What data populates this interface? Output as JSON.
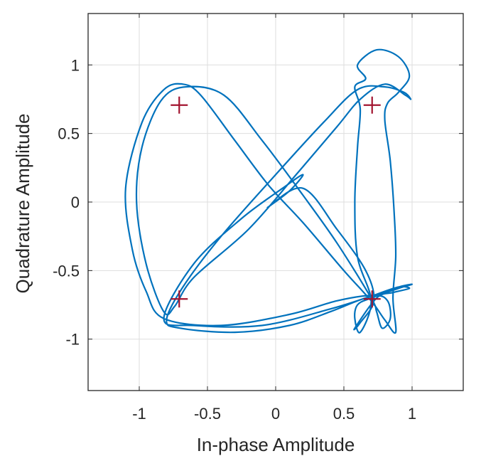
{
  "chart_data": {
    "type": "scatter",
    "title": "",
    "xlabel": "In-phase Amplitude",
    "ylabel": "Quadrature Amplitude",
    "xlim": [
      -1.375,
      1.375
    ],
    "ylim": [
      -1.375,
      1.375
    ],
    "xticks": [
      -1,
      -0.5,
      0,
      0.5,
      1
    ],
    "xtick_labels": [
      "-1",
      "-0.5",
      "0",
      "0.5",
      "1"
    ],
    "yticks": [
      1,
      0.5,
      0,
      -0.5,
      -1
    ],
    "ytick_labels": [
      "1",
      "0.5",
      "0",
      "-0.5",
      "-1"
    ],
    "grid": true,
    "trajectory_color": "#0072BD",
    "marker_color": "#A2142F",
    "series": [
      {
        "kind": "trajectory",
        "points": [
          [
            -0.06,
            -0.04
          ],
          [
            0.1,
            0.08
          ],
          [
            0.2,
            0.2
          ],
          [
            0.05,
            0.1
          ],
          [
            -0.25,
            -0.12
          ],
          [
            -0.6,
            -0.45
          ],
          [
            -0.82,
            -0.85
          ],
          [
            -0.6,
            -0.9
          ],
          [
            -0.1,
            -0.9
          ],
          [
            0.4,
            -0.78
          ],
          [
            0.72,
            -0.68
          ],
          [
            0.9,
            -0.62
          ],
          [
            1.0,
            -0.6
          ],
          [
            0.9,
            -0.63
          ],
          [
            0.7,
            -0.7
          ],
          [
            0.6,
            -0.75
          ],
          [
            0.58,
            -0.85
          ],
          [
            0.62,
            -0.95
          ],
          [
            0.7,
            -0.72
          ],
          [
            0.6,
            -0.4
          ],
          [
            0.58,
            0.0
          ],
          [
            0.6,
            0.4
          ],
          [
            0.62,
            0.68
          ],
          [
            0.58,
            0.84
          ],
          [
            0.66,
            0.9
          ],
          [
            0.6,
            1.0
          ],
          [
            0.74,
            1.11
          ],
          [
            0.9,
            1.06
          ],
          [
            0.98,
            0.92
          ],
          [
            0.9,
            0.8
          ],
          [
            0.82,
            0.72
          ],
          [
            0.8,
            0.6
          ],
          [
            0.84,
            0.3
          ],
          [
            0.87,
            -0.1
          ],
          [
            0.88,
            -0.4
          ],
          [
            0.86,
            -0.7
          ],
          [
            0.88,
            -0.95
          ],
          [
            0.8,
            -0.86
          ],
          [
            0.7,
            -0.72
          ],
          [
            0.5,
            -0.5
          ],
          [
            0.2,
            -0.15
          ],
          [
            -0.05,
            0.12
          ],
          [
            -0.3,
            0.45
          ],
          [
            -0.55,
            0.78
          ],
          [
            -0.68,
            0.86
          ],
          [
            -0.82,
            0.82
          ],
          [
            -0.98,
            0.58
          ],
          [
            -1.1,
            0.1
          ],
          [
            -1.05,
            -0.35
          ],
          [
            -0.95,
            -0.65
          ],
          [
            -0.82,
            -0.85
          ],
          [
            -0.4,
            -0.9
          ],
          [
            0.1,
            -0.82
          ],
          [
            0.45,
            -0.72
          ],
          [
            0.72,
            -0.68
          ],
          [
            0.82,
            -0.72
          ],
          [
            0.84,
            -0.85
          ],
          [
            0.78,
            -0.92
          ],
          [
            0.74,
            -0.8
          ],
          [
            0.7,
            -0.7
          ],
          [
            0.45,
            -0.3
          ],
          [
            0.2,
            0.05
          ],
          [
            -0.1,
            0.45
          ],
          [
            -0.38,
            0.78
          ],
          [
            -0.66,
            0.84
          ],
          [
            -0.84,
            0.74
          ],
          [
            -0.98,
            0.4
          ],
          [
            -1.02,
            0.0
          ],
          [
            -0.95,
            -0.45
          ],
          [
            -0.82,
            -0.8
          ],
          [
            -0.74,
            -0.76
          ],
          [
            -0.6,
            -0.55
          ],
          [
            -0.2,
            -0.2
          ],
          [
            0.15,
            0.2
          ],
          [
            0.45,
            0.55
          ],
          [
            0.62,
            0.75
          ],
          [
            0.8,
            0.86
          ],
          [
            0.95,
            0.78
          ],
          [
            0.99,
            0.75
          ],
          [
            0.94,
            0.8
          ],
          [
            0.8,
            0.84
          ],
          [
            0.6,
            0.82
          ],
          [
            0.35,
            0.58
          ],
          [
            0.0,
            0.2
          ],
          [
            -0.4,
            -0.25
          ],
          [
            -0.68,
            -0.62
          ],
          [
            -0.8,
            -0.86
          ],
          [
            -0.7,
            -0.92
          ],
          [
            -0.3,
            -0.95
          ],
          [
            0.1,
            -0.9
          ],
          [
            0.4,
            -0.8
          ],
          [
            0.6,
            -0.72
          ],
          [
            0.72,
            -0.68
          ],
          [
            0.9,
            -0.62
          ],
          [
            0.98,
            -0.63
          ],
          [
            0.86,
            -0.66
          ],
          [
            0.74,
            -0.7
          ],
          [
            0.58,
            -0.92
          ],
          [
            0.62,
            -0.88
          ],
          [
            0.72,
            -0.72
          ],
          [
            0.66,
            -0.5
          ],
          [
            0.45,
            -0.2
          ],
          [
            0.2,
            0.1
          ],
          [
            -0.06,
            -0.04
          ]
        ]
      },
      {
        "kind": "reference-constellation",
        "points": [
          [
            -0.707,
            0.707
          ],
          [
            0.707,
            0.707
          ],
          [
            -0.707,
            -0.707
          ],
          [
            0.707,
            -0.707
          ]
        ]
      }
    ]
  }
}
